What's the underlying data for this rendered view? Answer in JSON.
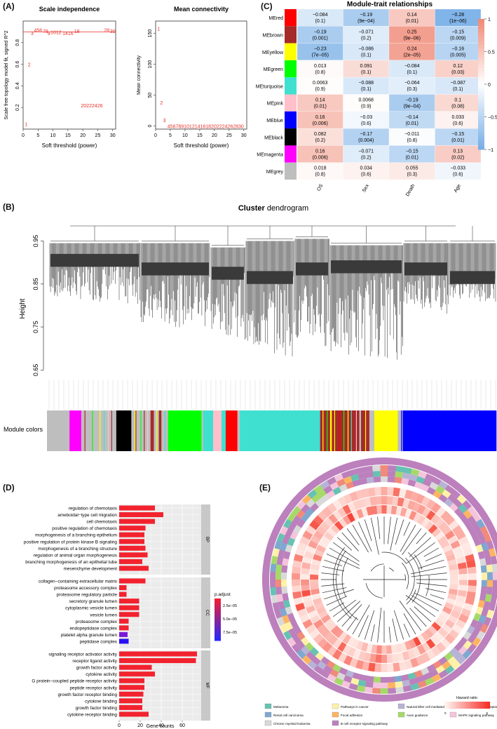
{
  "panels": {
    "a": "(A)",
    "b": "(B)",
    "c": "(C)",
    "d": "(D)",
    "e": "(E)"
  },
  "panel_a": {
    "left": {
      "title": "Scale independence",
      "ylabel": "Scale free topology model fit, signed R^2",
      "xlabel": "Soft threshold (power)",
      "xticks": [
        "0",
        "5",
        "10",
        "15",
        "20",
        "25",
        "30"
      ],
      "yticks": [
        "0.2",
        "0.4",
        "0.6",
        "0.8"
      ],
      "labels": [
        {
          "text": "1",
          "x": 1,
          "y": 0.05
        },
        {
          "text": "2",
          "x": 2,
          "y": 0.6
        },
        {
          "text": "3",
          "x": 3,
          "y": 0.89
        },
        {
          "text": "456",
          "x": 5,
          "y": 0.92
        },
        {
          "text": "78",
          "x": 7.5,
          "y": 0.91
        },
        {
          "text": "9",
          "x": 8.6,
          "y": 0.89
        },
        {
          "text": "1012",
          "x": 11,
          "y": 0.9
        },
        {
          "text": "1416",
          "x": 15,
          "y": 0.89
        },
        {
          "text": "18",
          "x": 18,
          "y": 0.91
        },
        {
          "text": "20222426",
          "x": 23,
          "y": 0.22
        },
        {
          "text": "28",
          "x": 28,
          "y": 0.92
        },
        {
          "text": "30",
          "x": 30,
          "y": 0.91
        }
      ]
    },
    "right": {
      "title": "Mean connectivity",
      "ylabel": "Mean connectivity",
      "xlabel": "Soft threshold (power)",
      "xticks": [
        "0",
        "5",
        "10",
        "15",
        "20",
        "25",
        "30"
      ],
      "yticks": [
        "0",
        "50",
        "100",
        "150"
      ],
      "labels": [
        {
          "text": "1",
          "x": 1,
          "y": 158
        },
        {
          "text": "2",
          "x": 2,
          "y": 38
        },
        {
          "text": "3",
          "x": 3,
          "y": 10
        },
        {
          "text": "4567891012141618202224262830",
          "x": 17,
          "y": 0
        }
      ]
    }
  },
  "panel_b": {
    "title_bold": "Cluster",
    "title_rest": " dendrogram",
    "ylabel": "Height",
    "yticks": [
      "0.65",
      "0.75",
      "0.85",
      "0.95"
    ],
    "module_label": "Module colors",
    "colors": {
      "grey": "#bebebe",
      "magenta": "#ff00ff",
      "brown": "#a52a2a",
      "black": "#000000",
      "green": "#00ff00",
      "pink": "#ffc0cb",
      "red": "#ff0000",
      "turquoise": "#40e0d0",
      "yellow": "#ffff00",
      "blue": "#0000ff"
    }
  },
  "panel_c": {
    "title": "Module-trait relationships",
    "rows": [
      {
        "name": "MEred",
        "color": "#ff0000",
        "cells": [
          {
            "v": "−0.084",
            "p": "(0.1)",
            "c": -0.084
          },
          {
            "v": "−0.19",
            "p": "(9e−04)",
            "c": -0.19
          },
          {
            "v": "0.14",
            "p": "(0.01)",
            "c": 0.14
          },
          {
            "v": "−0.28",
            "p": "(1e−06)",
            "c": -0.28
          }
        ]
      },
      {
        "name": "MEbrown",
        "color": "#a52a2a",
        "cells": [
          {
            "v": "−0.19",
            "p": "(0.001)",
            "c": -0.19
          },
          {
            "v": "−0.071",
            "p": "(0.2)",
            "c": -0.071
          },
          {
            "v": "0.25",
            "p": "(9e−06)",
            "c": 0.25
          },
          {
            "v": "−0.15",
            "p": "(0.009)",
            "c": -0.15
          }
        ]
      },
      {
        "name": "MEyellow",
        "color": "#ffff00",
        "cells": [
          {
            "v": "−0.23",
            "p": "(7e−05)",
            "c": -0.23
          },
          {
            "v": "−0.086",
            "p": "(0.1)",
            "c": -0.086
          },
          {
            "v": "0.24",
            "p": "(2e−05)",
            "c": 0.24
          },
          {
            "v": "−0.16",
            "p": "(0.005)",
            "c": -0.16
          }
        ]
      },
      {
        "name": "MEgreen",
        "color": "#00ff00",
        "cells": [
          {
            "v": "0.013",
            "p": "(0.8)",
            "c": 0.013
          },
          {
            "v": "0.091",
            "p": "(0.1)",
            "c": 0.091
          },
          {
            "v": "−0.084",
            "p": "(0.1)",
            "c": -0.084
          },
          {
            "v": "0.12",
            "p": "(0.03)",
            "c": 0.12
          }
        ]
      },
      {
        "name": "MEturquoise",
        "color": "#40e0d0",
        "cells": [
          {
            "v": "0.0063",
            "p": "(0.9)",
            "c": 0.0063
          },
          {
            "v": "−0.088",
            "p": "(0.1)",
            "c": -0.088
          },
          {
            "v": "−0.064",
            "p": "(0.3)",
            "c": -0.064
          },
          {
            "v": "−0.087",
            "p": "(0.1)",
            "c": -0.087
          }
        ]
      },
      {
        "name": "MEpink",
        "color": "#ffc0cb",
        "cells": [
          {
            "v": "0.14",
            "p": "(0.01)",
            "c": 0.14
          },
          {
            "v": "0.0068",
            "p": "(0.9)",
            "c": 0.0068
          },
          {
            "v": "−0.19",
            "p": "(9e−04)",
            "c": -0.19
          },
          {
            "v": "0.1",
            "p": "(0.08)",
            "c": 0.1
          }
        ]
      },
      {
        "name": "MEblue",
        "color": "#0000ff",
        "cells": [
          {
            "v": "0.16",
            "p": "(0.006)",
            "c": 0.16
          },
          {
            "v": "−0.03",
            "p": "(0.6)",
            "c": -0.03
          },
          {
            "v": "−0.14",
            "p": "(0.01)",
            "c": -0.14
          },
          {
            "v": "0.033",
            "p": "(0.6)",
            "c": 0.033
          }
        ]
      },
      {
        "name": "MEblack",
        "color": "#000000",
        "cells": [
          {
            "v": "0.082",
            "p": "(0.2)",
            "c": 0.082
          },
          {
            "v": "−0.17",
            "p": "(0.004)",
            "c": -0.17
          },
          {
            "v": "−0.011",
            "p": "(0.8)",
            "c": -0.011
          },
          {
            "v": "−0.15",
            "p": "(0.01)",
            "c": -0.15
          }
        ]
      },
      {
        "name": "MEmagenta",
        "color": "#ff00ff",
        "cells": [
          {
            "v": "0.16",
            "p": "(0.006)",
            "c": 0.16
          },
          {
            "v": "−0.071",
            "p": "(0.2)",
            "c": -0.071
          },
          {
            "v": "−0.15",
            "p": "(0.01)",
            "c": -0.15
          },
          {
            "v": "0.13",
            "p": "(0.02)",
            "c": 0.13
          }
        ]
      },
      {
        "name": "MEgrey",
        "color": "#bebebe",
        "cells": [
          {
            "v": "0.018",
            "p": "(0.8)",
            "c": 0.018
          },
          {
            "v": "0.034",
            "p": "(0.6)",
            "c": 0.034
          },
          {
            "v": "0.055",
            "p": "(0.3)",
            "c": 0.055
          },
          {
            "v": "−0.033",
            "p": "(0.6)",
            "c": -0.033
          }
        ]
      }
    ],
    "columns": [
      "OS",
      "Sex",
      "Death",
      "Age"
    ],
    "scale": [
      "1",
      "0.5",
      "0",
      "−0.5",
      "−1"
    ]
  },
  "chart_data": {
    "type": "bar",
    "title": "",
    "xlabel": "Gene counts",
    "xticks": [
      "0",
      "20",
      "40",
      "60"
    ],
    "xlim": [
      0,
      78
    ],
    "legend_title": "p.adjust",
    "legend_ticks": [
      "2.5e−05",
      "5.0e−05",
      "7.5e−05"
    ],
    "groups": [
      {
        "name": "BP",
        "items": [
          {
            "label": "regulation of chemotaxis",
            "value": 34,
            "color": "#f2222e"
          },
          {
            "label": "ameboidal−type cell migration",
            "value": 42,
            "color": "#f2222e"
          },
          {
            "label": "cell chemotaxis",
            "value": 34,
            "color": "#f2222e"
          },
          {
            "label": "positive regulation of chemotaxis",
            "value": 25,
            "color": "#f2222e"
          },
          {
            "label": "morphogenesis of a branching epithelium",
            "value": 24,
            "color": "#f2222e"
          },
          {
            "label": "positive regulation of protein kinase B signaling",
            "value": 24,
            "color": "#f2222e"
          },
          {
            "label": "morphogenesis of a branching structure",
            "value": 25,
            "color": "#f2222e"
          },
          {
            "label": "regulation of animal organ morphogenesis",
            "value": 27,
            "color": "#f2222e"
          },
          {
            "label": "branching morphogenesis of an epithelial tube",
            "value": 22,
            "color": "#f2222e"
          },
          {
            "label": "mesenchyme development",
            "value": 28,
            "color": "#f2222e"
          }
        ]
      },
      {
        "name": "CC",
        "items": [
          {
            "label": "collagen−containing extracellular matrix",
            "value": 25,
            "color": "#f2222e"
          },
          {
            "label": "proteasome accessory complex",
            "value": 7,
            "color": "#f2222e"
          },
          {
            "label": "proteasome regulatory particle",
            "value": 7,
            "color": "#f2222e"
          },
          {
            "label": "secretory granule lumen",
            "value": 19,
            "color": "#f2222e"
          },
          {
            "label": "cytoplasmic vesicle lumen",
            "value": 19,
            "color": "#f2222e"
          },
          {
            "label": "vesicle lumen",
            "value": 19,
            "color": "#f2222e"
          },
          {
            "label": "proteasome complex",
            "value": 9,
            "color": "#f2222e"
          },
          {
            "label": "endopeptidase complex",
            "value": 9,
            "color": "#f2222e"
          },
          {
            "label": "platelet alpha granule lumen",
            "value": 8,
            "color": "#7a1ad8"
          },
          {
            "label": "peptidase complex",
            "value": 9,
            "color": "#2a10f5"
          }
        ]
      },
      {
        "name": "MF",
        "items": [
          {
            "label": "signaling receptor activator activity",
            "value": 74,
            "color": "#f2222e"
          },
          {
            "label": "receptor ligand activity",
            "value": 73,
            "color": "#f2222e"
          },
          {
            "label": "growth factor activity",
            "value": 31,
            "color": "#f2222e"
          },
          {
            "label": "cytokine activity",
            "value": 34,
            "color": "#f2222e"
          },
          {
            "label": "G protein−coupled peptide receptor activity",
            "value": 24,
            "color": "#f2222e"
          },
          {
            "label": "peptide receptor activity",
            "value": 24,
            "color": "#f2222e"
          },
          {
            "label": "growth factor receptor binding",
            "value": 23,
            "color": "#f2222e"
          },
          {
            "label": "cytokine binding",
            "value": 22,
            "color": "#f2222e"
          },
          {
            "label": "growth factor binding",
            "value": 22,
            "color": "#f2222e"
          },
          {
            "label": "cytokine receptor binding",
            "value": 28,
            "color": "#f2222e"
          }
        ]
      }
    ]
  },
  "panel_e": {
    "legend": [
      {
        "label": "Melanoma",
        "color": "#66c2b3"
      },
      {
        "label": "Pathways in cancer",
        "color": "#fff2a8"
      },
      {
        "label": "Natural killer cell mediated cytotoxicity",
        "color": "#b6b3d6"
      },
      {
        "label": "Cytokine−cytokine receptor interaction",
        "color": "#f08a7a"
      },
      {
        "label": "Renal cell carcinoma",
        "color": "#7fa8d0"
      },
      {
        "label": "Focal adhesion",
        "color": "#fdb462"
      },
      {
        "label": "Axon guidance",
        "color": "#a6d96a"
      },
      {
        "label": "MAPK signaling pathway",
        "color": "#f4c4dc"
      },
      {
        "label": "Chronic myeloid leukemia",
        "color": "#d9d9d9"
      },
      {
        "label": "B cell receptor signaling pathway",
        "color": "#bc80bd"
      }
    ],
    "hazard_title": "Hazard ratio",
    "hazard_min": "0",
    "hazard_max": "5"
  }
}
